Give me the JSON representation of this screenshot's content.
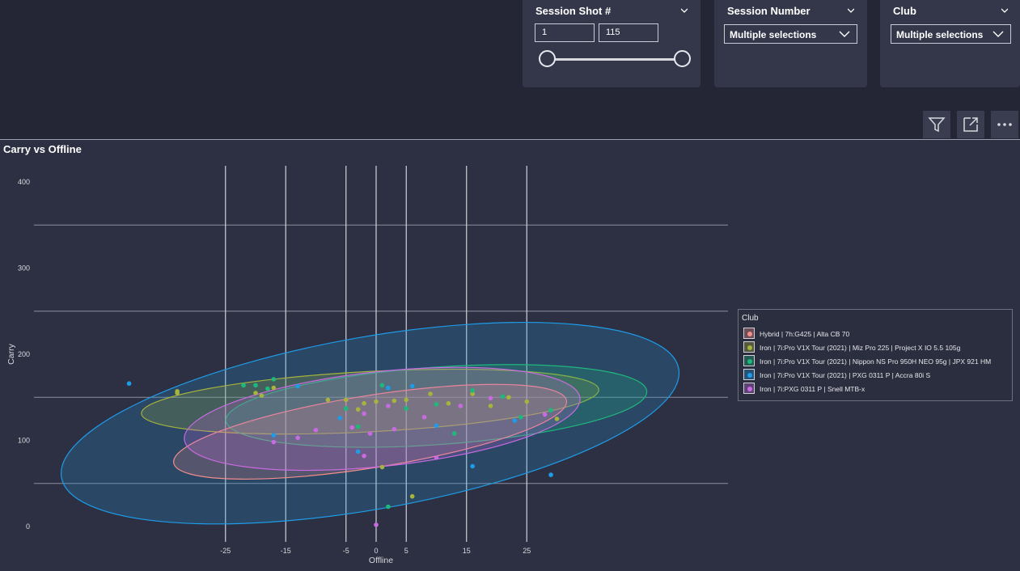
{
  "filters": {
    "session_shot": {
      "title": "Session Shot #",
      "min_value": "1",
      "max_value": "115"
    },
    "session_number": {
      "title": "Session Number",
      "selected": "Multiple selections"
    },
    "club": {
      "title": "Club",
      "selected": "Multiple selections"
    }
  },
  "toolbar": {
    "icons": [
      "filter-icon",
      "focus-mode-icon",
      "more-options-icon"
    ]
  },
  "chart_title": "Carry vs Offline",
  "legend_title": "Club",
  "chart_data": {
    "type": "scatter",
    "title": "Carry vs Offline",
    "xlabel": "Offline",
    "ylabel": "Carry",
    "xlim": [
      -58,
      58
    ],
    "ylim": [
      0,
      410
    ],
    "x_ticks": [
      -25,
      -15,
      -5,
      0,
      5,
      15,
      25
    ],
    "y_ticks": [
      0,
      100,
      200,
      300,
      400
    ],
    "grid": true,
    "legend_position": "right",
    "series": [
      {
        "name": "Hybrid | 7h:G425 |  Alta CB 70",
        "color": "#f28e8b",
        "points": []
      },
      {
        "name": "Iron | 7i:Pro V1X Tour (2021) |  Miz Pro 225 |  Project X IO 5.5 105g",
        "color": "#a6b33c",
        "points": [
          [
            -33,
            157
          ],
          [
            -33,
            155
          ],
          [
            -20,
            155
          ],
          [
            -19,
            152
          ],
          [
            -17,
            161
          ],
          [
            -8,
            147
          ],
          [
            -5,
            147
          ],
          [
            -3,
            136
          ],
          [
            -2,
            143
          ],
          [
            0,
            145
          ],
          [
            3,
            146
          ],
          [
            5,
            147
          ],
          [
            9,
            154
          ],
          [
            12,
            143
          ],
          [
            16,
            154
          ],
          [
            19,
            140
          ],
          [
            22,
            150
          ],
          [
            25,
            145
          ],
          [
            30,
            125
          ],
          [
            1,
            69
          ],
          [
            6,
            35
          ]
        ]
      },
      {
        "name": "Iron | 7i:Pro V1X Tour (2021) |  Nippon NS Pro 950H NEO 95g |  JPX 921 HM",
        "color": "#1fb87c",
        "points": [
          [
            -22,
            164
          ],
          [
            -20,
            164
          ],
          [
            -18,
            160
          ],
          [
            -17,
            171
          ],
          [
            -5,
            137
          ],
          [
            -3,
            116
          ],
          [
            1,
            164
          ],
          [
            5,
            137
          ],
          [
            10,
            142
          ],
          [
            13,
            108
          ],
          [
            16,
            158
          ],
          [
            21,
            151
          ],
          [
            24,
            127
          ],
          [
            29,
            135
          ],
          [
            2,
            23
          ]
        ]
      },
      {
        "name": "Iron | 7i:Pro V1X Tour (2021) |  PXG 0311 P |  Accra 80i S",
        "color": "#1e9ce8",
        "points": [
          [
            -41,
            166
          ],
          [
            -13,
            163
          ],
          [
            -17,
            106
          ],
          [
            -6,
            126
          ],
          [
            -3,
            87
          ],
          [
            2,
            161
          ],
          [
            6,
            163
          ],
          [
            10,
            117
          ],
          [
            16,
            70
          ],
          [
            23,
            123
          ],
          [
            29,
            60
          ]
        ]
      },
      {
        "name": "Iron | 7i:PXG 0311 P |  Snell MTB-x",
        "color": "#c86be0",
        "points": [
          [
            -17,
            98
          ],
          [
            -13,
            103
          ],
          [
            -10,
            112
          ],
          [
            -4,
            115
          ],
          [
            -2,
            131
          ],
          [
            -1,
            108
          ],
          [
            2,
            140
          ],
          [
            3,
            113
          ],
          [
            8,
            127
          ],
          [
            10,
            80
          ],
          [
            14,
            140
          ],
          [
            19,
            149
          ],
          [
            28,
            130
          ],
          [
            -2,
            82
          ],
          [
            0,
            2
          ]
        ]
      }
    ],
    "ellipses": [
      {
        "series": "Hybrid | 7h:G425 |  Alta CB 70",
        "center": [
          -1,
          110
        ],
        "radii": [
          33,
          42
        ],
        "rotation_deg": -9
      },
      {
        "series": "Iron | 7i:Pro V1X Tour (2021) |  Miz Pro 225 |  Project X IO 5.5 105g",
        "center": [
          -1,
          145
        ],
        "radii": [
          38,
          35
        ],
        "rotation_deg": -3
      },
      {
        "series": "Iron | 7i:Pro V1X Tour (2021) |  Nippon NS Pro 950H NEO 95g |  JPX 921 HM",
        "center": [
          10,
          140
        ],
        "radii": [
          35,
          45
        ],
        "rotation_deg": -4
      },
      {
        "series": "Iron | 7i:Pro V1X Tour (2021) |  PXG 0311 P |  Accra 80i S",
        "center": [
          -1,
          120
        ],
        "radii": [
          52,
          100
        ],
        "rotation_deg": -10
      },
      {
        "series": "Iron | 7i:PXG 0311 P |  Snell MTB-x",
        "center": [
          1,
          125
        ],
        "radii": [
          33,
          55
        ],
        "rotation_deg": -6
      }
    ]
  }
}
